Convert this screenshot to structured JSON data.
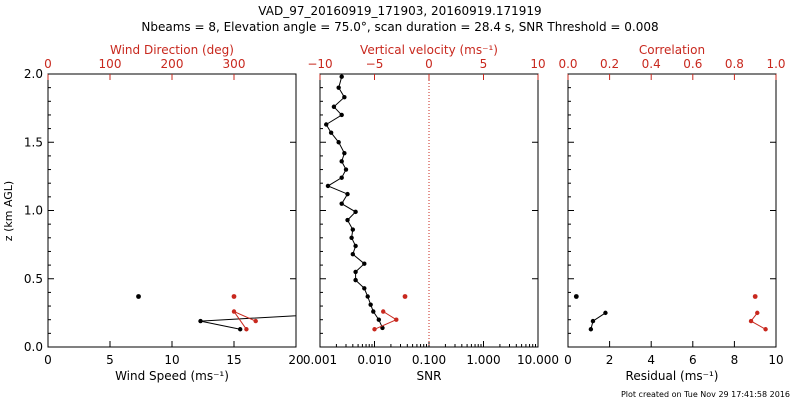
{
  "title_line1": "VAD_97_20160919_171903, 20160919.171919",
  "title_line2": "Nbeams = 8, Elevation angle = 75.0°, scan duration = 28.4 s, SNR Threshold = 0.008",
  "footer": "Plot created on Tue Nov 29 17:41:58 2016",
  "colors": {
    "primary": "#000000",
    "secondary": "#c8281e"
  },
  "chart_data": [
    {
      "type": "line",
      "ylabel": "z (km AGL)",
      "ylim": [
        0,
        2.0
      ],
      "y_ticks": [
        "0.0",
        "0.5",
        "1.0",
        "1.5",
        "2.0"
      ],
      "bottom_axis": {
        "label": "Wind Speed (ms⁻¹)",
        "range": [
          0,
          20
        ],
        "ticks": [
          "0",
          "5",
          "10",
          "15",
          "20"
        ]
      },
      "top_axis": {
        "label": "Wind Direction (deg)",
        "range": [
          0,
          400
        ],
        "ticks": [
          "0",
          "100",
          "200",
          "300"
        ]
      },
      "series": [
        {
          "axis": "bottom",
          "points": [
            [
              26,
              0.26
            ],
            [
              12.3,
              0.19
            ],
            [
              15.5,
              0.13
            ]
          ],
          "extra_points": [
            [
              7.3,
              0.37
            ]
          ]
        },
        {
          "axis": "top",
          "points": [
            [
              335,
              0.19
            ],
            [
              300,
              0.26
            ],
            [
              320,
              0.13
            ]
          ],
          "extra_points": [
            [
              300,
              0.37
            ]
          ]
        }
      ]
    },
    {
      "type": "line",
      "bottom_axis": {
        "label": "SNR",
        "scale": "log",
        "range": [
          0.001,
          10
        ],
        "ticks": [
          "0.001",
          "0.010",
          "0.100",
          "1.000",
          "10.000"
        ]
      },
      "top_axis": {
        "label": "Vertical velocity (ms⁻¹)",
        "range": [
          -10,
          10
        ],
        "ticks": [
          "−10",
          "−5",
          "0",
          "5",
          "10"
        ]
      },
      "reference_line": {
        "axis": "top",
        "value": 0
      },
      "series": [
        {
          "axis": "bottom",
          "points": [
            [
              0.0025,
              1.98
            ],
            [
              0.0022,
              1.9
            ],
            [
              0.0028,
              1.83
            ],
            [
              0.0018,
              1.76
            ],
            [
              0.0025,
              1.7
            ],
            [
              0.0013,
              1.63
            ],
            [
              0.0016,
              1.57
            ],
            [
              0.0022,
              1.5
            ],
            [
              0.0028,
              1.42
            ],
            [
              0.0025,
              1.36
            ],
            [
              0.003,
              1.3
            ],
            [
              0.0025,
              1.24
            ],
            [
              0.0014,
              1.18
            ],
            [
              0.0032,
              1.12
            ],
            [
              0.0025,
              1.05
            ],
            [
              0.0045,
              0.99
            ],
            [
              0.0032,
              0.93
            ],
            [
              0.004,
              0.86
            ],
            [
              0.0038,
              0.8
            ],
            [
              0.0045,
              0.74
            ],
            [
              0.004,
              0.68
            ],
            [
              0.0065,
              0.61
            ],
            [
              0.0045,
              0.55
            ],
            [
              0.0045,
              0.49
            ],
            [
              0.0065,
              0.43
            ],
            [
              0.0075,
              0.37
            ],
            [
              0.0085,
              0.31
            ],
            [
              0.0095,
              0.26
            ],
            [
              0.012,
              0.2
            ],
            [
              0.014,
              0.14
            ]
          ]
        },
        {
          "axis": "top",
          "points": [
            [
              -4.2,
              0.26
            ],
            [
              -3.0,
              0.2
            ],
            [
              -5.0,
              0.13
            ]
          ],
          "extra_points": [
            [
              -2.2,
              0.37
            ]
          ]
        }
      ]
    },
    {
      "type": "line",
      "bottom_axis": {
        "label": "Residual (ms⁻¹)",
        "range": [
          0,
          10
        ],
        "ticks": [
          "0",
          "2",
          "4",
          "6",
          "8",
          "10"
        ]
      },
      "top_axis": {
        "label": "Correlation",
        "range": [
          0,
          1.0
        ],
        "ticks": [
          "0.0",
          "0.2",
          "0.4",
          "0.6",
          "0.8",
          "1.0"
        ]
      },
      "series": [
        {
          "axis": "bottom",
          "points": [
            [
              1.8,
              0.25
            ],
            [
              1.2,
              0.19
            ],
            [
              1.1,
              0.13
            ]
          ],
          "extra_points": [
            [
              0.4,
              0.37
            ]
          ]
        },
        {
          "axis": "top",
          "points": [
            [
              0.91,
              0.25
            ],
            [
              0.88,
              0.19
            ],
            [
              0.95,
              0.13
            ]
          ],
          "extra_points": [
            [
              0.9,
              0.37
            ]
          ]
        }
      ]
    }
  ]
}
